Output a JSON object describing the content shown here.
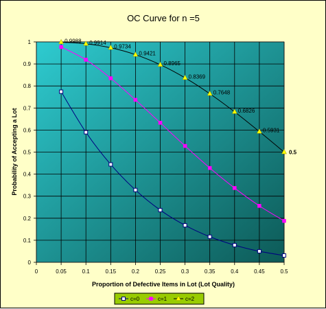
{
  "chart_data": {
    "type": "line",
    "title": "OC Curve for  n =5",
    "xlabel": "Proportion of Defective Items in Lot (Lot Quality)",
    "ylabel": "Probability of Accepting a Lot",
    "xlim": [
      0,
      0.5
    ],
    "ylim": [
      0,
      1
    ],
    "x_ticks": [
      "0",
      "0.05",
      "0.1",
      "0.15",
      "0.2",
      "0.25",
      "0.3",
      "0.35",
      "0.4",
      "0.45",
      "0.5"
    ],
    "y_ticks": [
      "0",
      "0.1",
      "0.2",
      "0.3",
      "0.4",
      "0.5",
      "0.6",
      "0.7",
      "0.8",
      "0.9",
      "1"
    ],
    "grid": true,
    "legend_position": "bottom",
    "x": [
      0.05,
      0.1,
      0.15,
      0.2,
      0.25,
      0.3,
      0.35,
      0.4,
      0.45,
      0.5
    ],
    "series": [
      {
        "name": "c=0",
        "color": "#000080",
        "marker": "square-open",
        "values": [
          0.774,
          0.59,
          0.444,
          0.328,
          0.237,
          0.168,
          0.116,
          0.078,
          0.05,
          0.031
        ]
      },
      {
        "name": "c=1",
        "color": "#ff00ff",
        "marker": "square-filled",
        "values": [
          0.977,
          0.919,
          0.835,
          0.737,
          0.633,
          0.528,
          0.428,
          0.337,
          0.256,
          0.188
        ]
      },
      {
        "name": "c=2",
        "color": "#000000",
        "marker": "triangle-yellow",
        "values": [
          0.9988,
          0.9914,
          0.9734,
          0.9421,
          0.8965,
          0.8369,
          0.7648,
          0.6826,
          0.5931,
          0.5
        ],
        "data_labels": [
          "0.9988",
          "0.9914",
          "0.9734",
          "0.9421",
          "0.8965",
          "0.8369",
          "0.7648",
          "0.6826",
          "0.5931",
          "0.5"
        ]
      }
    ],
    "plot_background": {
      "from": "#2ecbd0",
      "to": "#0d5a57"
    }
  }
}
